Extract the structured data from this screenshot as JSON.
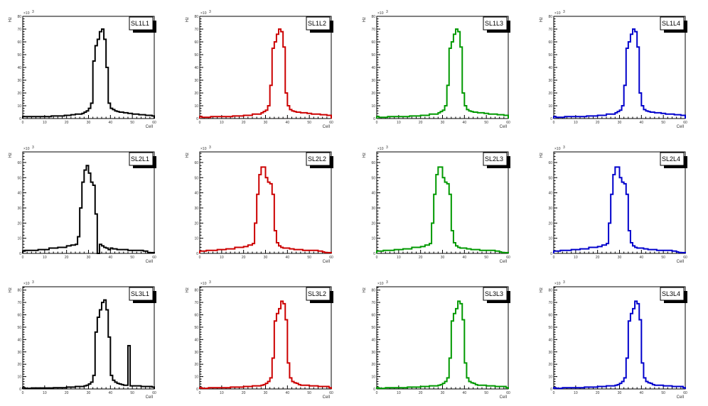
{
  "chart_data": {
    "type": "bar",
    "layout": "3x4 grid of step histograms",
    "x_axis": {
      "label": "Cell",
      "range": [
        0,
        60
      ],
      "ticks": [
        "0",
        "10",
        "20",
        "30",
        "40",
        "50",
        "60"
      ],
      "bin_width": 1
    },
    "y_axis": {
      "label": "Hz",
      "multiplier": "×10",
      "multiplier_exp": "3"
    },
    "rows": [
      {
        "ylim": [
          0,
          80
        ],
        "y_ticks": [
          "0",
          "10",
          "20",
          "30",
          "40",
          "50",
          "60",
          "70",
          "80"
        ]
      },
      {
        "ylim": [
          0,
          67
        ],
        "y_ticks": [
          "0",
          "10",
          "20",
          "30",
          "40",
          "50",
          "60"
        ]
      },
      {
        "ylim": [
          0,
          82.7
        ],
        "y_ticks": [
          "0",
          "10",
          "20",
          "30",
          "40",
          "50",
          "60",
          "70",
          "80"
        ]
      }
    ],
    "colors": [
      "#000000",
      "#cc0000",
      "#009900",
      "#0000cc"
    ],
    "histograms": [
      {
        "title": "SL1L1",
        "row": 0,
        "col": 0,
        "values": [
          1.5,
          1.5,
          1.5,
          1.5,
          1.5,
          1.5,
          1.5,
          1.5,
          1.5,
          1.5,
          1.5,
          1.5,
          1.5,
          2,
          2,
          2,
          2,
          2,
          2,
          2.5,
          2.5,
          2.5,
          3,
          3,
          3.5,
          3.5,
          3.5,
          4,
          5,
          6,
          8,
          12,
          45,
          57,
          62,
          68,
          70,
          62,
          40,
          12,
          8,
          7,
          6,
          5.5,
          5,
          5,
          4.5,
          4.5,
          4,
          4,
          3.5,
          3.5,
          3.5,
          3,
          3,
          3,
          2.5,
          2.5,
          2.5,
          2
        ]
      },
      {
        "title": "SL1L2",
        "row": 0,
        "col": 1,
        "values": [
          1.5,
          1,
          1,
          1,
          1,
          1.5,
          1.5,
          1.5,
          1.5,
          1.5,
          1.5,
          1.5,
          1.5,
          1.5,
          1.5,
          2,
          2,
          2,
          2,
          2,
          2.5,
          2.5,
          2.5,
          2.5,
          3.5,
          3.5,
          3.5,
          3.5,
          4.5,
          5.5,
          6.5,
          10,
          26,
          55,
          60,
          66,
          70,
          68,
          56,
          20,
          10,
          7,
          6,
          5.5,
          5,
          5,
          4.5,
          4.5,
          4.5,
          4,
          4,
          3.5,
          3.5,
          3.5,
          3.5,
          3,
          3,
          3,
          2.5,
          2.5
        ]
      },
      {
        "title": "SL1L3",
        "row": 0,
        "col": 2,
        "values": [
          1.5,
          1,
          1,
          1,
          1,
          1.5,
          1.5,
          1.5,
          1.5,
          1.5,
          1.5,
          1.5,
          1.5,
          1.5,
          1.5,
          2,
          2,
          2,
          2,
          2,
          2.5,
          2.5,
          2.5,
          2.5,
          3.5,
          3.5,
          3.5,
          3.5,
          4.5,
          5.5,
          6.5,
          10,
          26,
          55,
          60,
          66,
          70,
          68,
          56,
          20,
          10,
          7,
          6,
          5.5,
          5,
          5,
          4.5,
          4.5,
          4.5,
          4,
          4,
          3.5,
          3.5,
          3.5,
          3.5,
          3,
          3,
          3,
          2.5,
          2.5
        ]
      },
      {
        "title": "SL1L4",
        "row": 0,
        "col": 3,
        "values": [
          1.5,
          1,
          1,
          1,
          1,
          1.5,
          1.5,
          1.5,
          1.5,
          1.5,
          1.5,
          1.5,
          1.5,
          1.5,
          1.5,
          2,
          2,
          2,
          2,
          2,
          2.5,
          2.5,
          2.5,
          2.5,
          3.5,
          3.5,
          3.5,
          3.5,
          4.5,
          5.5,
          6.5,
          10,
          26,
          55,
          60,
          66,
          70,
          68,
          56,
          20,
          10,
          7,
          6,
          5.5,
          5,
          5,
          4.5,
          4.5,
          4.5,
          4,
          4,
          3.5,
          3.5,
          3.5,
          3.5,
          3,
          3,
          3,
          2.5,
          2.5
        ]
      },
      {
        "title": "SL2L1",
        "row": 1,
        "col": 0,
        "values": [
          1.5,
          2,
          2,
          2,
          2,
          2,
          2,
          2.5,
          2.5,
          2.5,
          2.5,
          2.5,
          3.5,
          3.5,
          3.5,
          3.5,
          4,
          4,
          4,
          4,
          5,
          5,
          5.5,
          5.5,
          6,
          11,
          30,
          47,
          55,
          58,
          53,
          47,
          45,
          26,
          0,
          6,
          5,
          4,
          3.5,
          2.5,
          3.5,
          3,
          3,
          2.5,
          2.5,
          2.5,
          2.5,
          2.5,
          2,
          2,
          2,
          2,
          2,
          2,
          2,
          1.5,
          1.5,
          0.5,
          0.5,
          0.5
        ]
      },
      {
        "title": "SL2L2",
        "row": 1,
        "col": 1,
        "values": [
          1.5,
          1.5,
          1.5,
          2,
          2,
          2,
          2,
          2,
          2.5,
          2.5,
          2.5,
          2.5,
          3,
          3,
          3,
          3,
          4,
          4,
          4,
          4,
          4.5,
          4.5,
          5.5,
          5.5,
          6.5,
          20,
          39,
          52,
          57,
          57,
          50,
          47,
          46,
          39,
          15,
          7,
          5,
          4,
          3.5,
          3.5,
          3.5,
          3,
          3,
          2.5,
          2.5,
          2.5,
          2.5,
          2,
          2,
          2,
          2,
          2,
          2,
          2,
          1.5,
          1.5,
          1,
          0.5,
          0.5,
          0.5
        ]
      },
      {
        "title": "SL2L3",
        "row": 1,
        "col": 2,
        "values": [
          1.5,
          1.5,
          1.5,
          2,
          2,
          2,
          2,
          2,
          2.5,
          2.5,
          2.5,
          2.5,
          3,
          3,
          3,
          3,
          4,
          4,
          4,
          4,
          4.5,
          4.5,
          5.5,
          5.5,
          6.5,
          20,
          39,
          52,
          57,
          57,
          50,
          47,
          46,
          39,
          15,
          7,
          5,
          4,
          3.5,
          3.5,
          3.5,
          3,
          3,
          2.5,
          2.5,
          2.5,
          2.5,
          2,
          2,
          2,
          2,
          2,
          2,
          2,
          1.5,
          1.5,
          1,
          0.5,
          0.5,
          0.5
        ]
      },
      {
        "title": "SL2L4",
        "row": 1,
        "col": 3,
        "values": [
          1.5,
          1.5,
          1.5,
          2,
          2,
          2,
          2,
          2,
          2.5,
          2.5,
          2.5,
          2.5,
          3,
          3,
          3,
          3,
          4,
          4,
          4,
          4,
          4.5,
          4.5,
          5.5,
          5.5,
          6.5,
          20,
          39,
          52,
          57,
          57,
          50,
          47,
          46,
          39,
          15,
          7,
          5,
          4,
          3.5,
          3.5,
          3.5,
          3,
          3,
          2.5,
          2.5,
          2.5,
          2.5,
          2,
          2,
          2,
          2,
          2,
          2,
          2,
          1.5,
          1.5,
          1,
          0.5,
          0.5,
          0.5
        ]
      },
      {
        "title": "SL3L1",
        "row": 2,
        "col": 0,
        "values": [
          1,
          0.5,
          0.5,
          0.5,
          0.8,
          0.8,
          0.8,
          0.8,
          0.8,
          0.8,
          0.8,
          0.8,
          0.8,
          0.8,
          1,
          1,
          1,
          1,
          1,
          1,
          1.5,
          1.5,
          1.5,
          1.5,
          2,
          2,
          2,
          2,
          2.5,
          3,
          4,
          5.5,
          11,
          46,
          58,
          64,
          70,
          72,
          64,
          42,
          11,
          7,
          5.5,
          4.5,
          4,
          3.5,
          3,
          3,
          35,
          2.5,
          2.5,
          2.5,
          2.5,
          2.5,
          2,
          2,
          2,
          2,
          2,
          1.5
        ]
      },
      {
        "title": "SL3L2",
        "row": 2,
        "col": 1,
        "values": [
          1,
          0.5,
          0.5,
          0.5,
          1,
          1,
          1,
          1,
          1,
          1,
          1,
          1,
          1,
          1,
          1.5,
          1.5,
          1.5,
          1.5,
          1.5,
          1.5,
          2,
          2,
          2,
          2,
          2.5,
          2.5,
          2.5,
          2.5,
          3,
          3.5,
          4.5,
          6,
          9,
          25,
          55,
          61,
          65,
          71,
          69,
          56,
          21,
          9,
          6,
          5,
          4.5,
          3.5,
          3,
          3,
          3,
          3,
          2.5,
          2.5,
          2.5,
          2.5,
          2,
          2,
          2,
          2,
          2,
          1
        ]
      },
      {
        "title": "SL3L3",
        "row": 2,
        "col": 2,
        "values": [
          1,
          0.5,
          0.5,
          0.5,
          1,
          1,
          1,
          1,
          1,
          1,
          1,
          1,
          1,
          1,
          1.5,
          1.5,
          1.5,
          1.5,
          1.5,
          1.5,
          2,
          2,
          2,
          2,
          2.5,
          2.5,
          2.5,
          2.5,
          3,
          3.5,
          4.5,
          6,
          9,
          25,
          55,
          61,
          65,
          71,
          69,
          56,
          21,
          9,
          6,
          5,
          4.5,
          3.5,
          3,
          3,
          3,
          3,
          2.5,
          2.5,
          2.5,
          2.5,
          2,
          2,
          2,
          2,
          2,
          1
        ]
      },
      {
        "title": "SL3L4",
        "row": 2,
        "col": 3,
        "values": [
          1,
          0.5,
          0.5,
          0.5,
          1,
          1,
          1,
          1,
          1,
          1,
          1,
          1,
          1,
          1,
          1.5,
          1.5,
          1.5,
          1.5,
          1.5,
          1.5,
          2,
          2,
          2,
          2,
          2.5,
          2.5,
          2.5,
          2.5,
          3,
          3.5,
          4.5,
          6,
          9,
          25,
          55,
          61,
          65,
          71,
          69,
          56,
          21,
          9,
          6,
          5,
          4.5,
          3.5,
          3,
          3,
          3,
          3,
          2.5,
          2.5,
          2.5,
          2.5,
          2,
          2,
          2,
          2,
          2,
          1
        ]
      }
    ]
  }
}
